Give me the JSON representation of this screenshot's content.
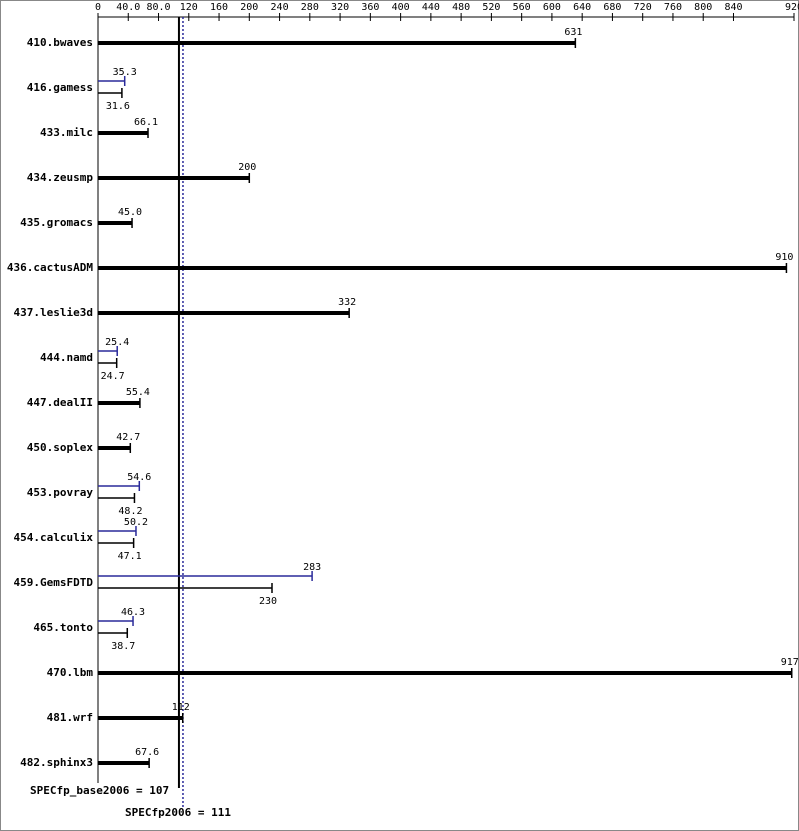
{
  "chart_data": {
    "type": "bar",
    "orientation": "horizontal",
    "categories": [
      "410.bwaves",
      "416.gamess",
      "433.milc",
      "434.zeusmp",
      "435.gromacs",
      "436.cactusADM",
      "437.leslie3d",
      "444.namd",
      "447.dealII",
      "450.soplex",
      "453.povray",
      "454.calculix",
      "459.GemsFDTD",
      "465.tonto",
      "470.lbm",
      "481.wrf",
      "482.sphinx3"
    ],
    "series": [
      {
        "name": "SPECfp_base2006",
        "color": "#000000",
        "values": [
          631,
          31.6,
          66.1,
          200,
          45.0,
          910,
          332,
          24.7,
          55.4,
          42.7,
          48.2,
          47.1,
          230,
          38.7,
          917,
          112,
          67.6
        ],
        "value_labels": [
          "631",
          "31.6",
          "66.1",
          "200",
          "45.0",
          "910",
          "332",
          "24.7",
          "55.4",
          "42.7",
          "48.2",
          "47.1",
          "230",
          "38.7",
          "917",
          "112",
          "67.6"
        ]
      },
      {
        "name": "SPECfp2006",
        "color": "#2a2a9a",
        "values": [
          null,
          35.3,
          null,
          null,
          null,
          null,
          null,
          25.4,
          null,
          null,
          54.6,
          50.2,
          283,
          46.3,
          null,
          null,
          null
        ]
      }
    ],
    "xlim": [
      0,
      920
    ],
    "xticks": [
      0,
      {
        "value": 40,
        "label": "40.0"
      },
      {
        "value": 80,
        "label": "80.0"
      },
      120,
      160,
      200,
      240,
      280,
      320,
      360,
      400,
      440,
      480,
      520,
      560,
      600,
      640,
      680,
      720,
      760,
      800,
      840,
      920
    ],
    "reference_lines": [
      {
        "label": "SPECfp_base2006 = 107",
        "value": 107,
        "color": "#000000"
      },
      {
        "label": "SPECfp2006 = 111",
        "value": 111,
        "color": "#2a2a9a"
      }
    ]
  }
}
